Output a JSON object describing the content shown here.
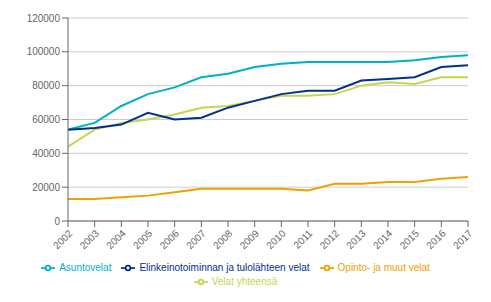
{
  "chart_data": {
    "type": "line",
    "x": [
      2002,
      2003,
      2004,
      2005,
      2006,
      2007,
      2008,
      2009,
      2010,
      2011,
      2012,
      2013,
      2014,
      2015,
      2016,
      2017
    ],
    "xlim": [
      2002,
      2017
    ],
    "xticks": [
      2002,
      2003,
      2004,
      2005,
      2006,
      2007,
      2008,
      2009,
      2010,
      2011,
      2012,
      2013,
      2014,
      2015,
      2016,
      2017
    ],
    "ylim": [
      0,
      120000
    ],
    "yticks": [
      0,
      20000,
      40000,
      60000,
      80000,
      100000,
      120000
    ],
    "grid": true,
    "legend": "bottom",
    "series": [
      {
        "name": "Velat yhteensä",
        "color": "#c8d44e",
        "values": [
          44000,
          54000,
          58000,
          60000,
          63000,
          67000,
          68000,
          71000,
          74000,
          74000,
          75000,
          80000,
          82000,
          81000,
          85000,
          85000
        ]
      },
      {
        "name": "Asuntovelat",
        "color": "#00b0c8",
        "values": [
          54000,
          58000,
          68000,
          75000,
          79000,
          85000,
          87000,
          91000,
          93000,
          94000,
          94000,
          94000,
          94000,
          95000,
          97000,
          98000
        ]
      },
      {
        "name": "Opinto- ja muut velat",
        "color": "#f0a000",
        "values": [
          13000,
          13000,
          14000,
          15000,
          17000,
          19000,
          19000,
          19000,
          19000,
          18000,
          22000,
          22000,
          23000,
          23000,
          25000,
          26000
        ]
      },
      {
        "name": "Elinkeinotoiminnan ja tulolähteen velat",
        "color": "#003090",
        "values": [
          54000,
          55000,
          57000,
          64000,
          60000,
          61000,
          67000,
          71000,
          75000,
          77000,
          77000,
          83000,
          84000,
          85000,
          91000,
          92000
        ]
      }
    ]
  }
}
